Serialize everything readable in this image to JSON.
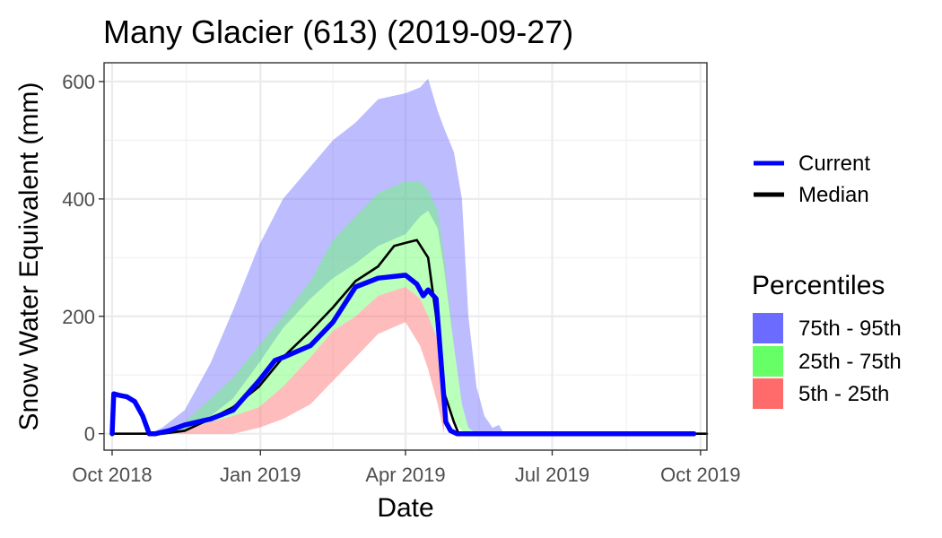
{
  "chart_data": {
    "type": "area",
    "title": "Many Glacier (613) (2019-09-27)",
    "xlabel": "Date",
    "ylabel": "Snow Water Equivalent (mm)",
    "x_range": [
      "2018-09-26",
      "2019-10-05"
    ],
    "ylim": [
      -28,
      632
    ],
    "x_ticks": [
      {
        "date": "2018-10-01",
        "label": "Oct 2018"
      },
      {
        "date": "2019-01-01",
        "label": "Jan 2019"
      },
      {
        "date": "2019-04-01",
        "label": "Apr 2019"
      },
      {
        "date": "2019-07-01",
        "label": "Jul 2019"
      },
      {
        "date": "2019-10-01",
        "label": "Oct 2019"
      }
    ],
    "y_ticks": [
      0,
      200,
      400,
      600
    ],
    "grid": true,
    "legend_position": "right",
    "bands": [
      {
        "name": "75th - 95th",
        "color": "#6b6bff",
        "x": [
          "2018-10-01",
          "2018-10-24",
          "2018-11-01",
          "2018-11-15",
          "2018-12-01",
          "2018-12-15",
          "2018-12-31",
          "2019-01-15",
          "2019-02-01",
          "2019-02-15",
          "2019-03-01",
          "2019-03-15",
          "2019-04-01",
          "2019-04-10",
          "2019-04-15",
          "2019-04-21",
          "2019-04-25",
          "2019-05-01",
          "2019-05-06",
          "2019-05-10",
          "2019-05-15",
          "2019-05-20",
          "2019-05-25",
          "2019-05-29",
          "2019-06-01"
        ],
        "upper": [
          0,
          0,
          10,
          40,
          120,
          210,
          320,
          400,
          455,
          500,
          530,
          570,
          580,
          590,
          605,
          550,
          520,
          480,
          400,
          200,
          80,
          30,
          10,
          15,
          0
        ],
        "lower": [
          0,
          0,
          0,
          5,
          30,
          60,
          120,
          180,
          230,
          265,
          290,
          320,
          340,
          370,
          380,
          350,
          280,
          150,
          50,
          10,
          0,
          0,
          0,
          0,
          0
        ]
      },
      {
        "name": "25th - 75th",
        "color": "#66ff66",
        "x": [
          "2018-10-01",
          "2018-10-24",
          "2018-11-01",
          "2018-11-15",
          "2018-12-01",
          "2018-12-15",
          "2018-12-31",
          "2019-01-15",
          "2019-02-01",
          "2019-02-15",
          "2019-03-01",
          "2019-03-15",
          "2019-04-01",
          "2019-04-10",
          "2019-04-15",
          "2019-04-21",
          "2019-04-25",
          "2019-05-01",
          "2019-05-06",
          "2019-05-10",
          "2019-05-15"
        ],
        "upper": [
          0,
          0,
          5,
          20,
          60,
          95,
          150,
          200,
          260,
          330,
          370,
          410,
          430,
          430,
          415,
          380,
          300,
          150,
          50,
          10,
          0
        ],
        "lower": [
          0,
          0,
          0,
          5,
          20,
          30,
          45,
          80,
          130,
          175,
          200,
          235,
          250,
          230,
          200,
          160,
          80,
          20,
          5,
          0,
          0
        ]
      },
      {
        "name": "5th - 25th",
        "color": "#ff6b6b",
        "x": [
          "2018-10-01",
          "2018-11-15",
          "2018-12-01",
          "2018-12-15",
          "2018-12-31",
          "2019-01-15",
          "2019-02-01",
          "2019-02-15",
          "2019-03-01",
          "2019-03-15",
          "2019-04-01",
          "2019-04-10",
          "2019-04-15",
          "2019-04-21",
          "2019-04-25"
        ],
        "upper": [
          0,
          5,
          20,
          30,
          45,
          80,
          130,
          175,
          200,
          235,
          250,
          230,
          200,
          160,
          80
        ],
        "lower": [
          0,
          0,
          0,
          0,
          10,
          25,
          50,
          90,
          130,
          170,
          190,
          150,
          110,
          50,
          0
        ]
      }
    ],
    "series": [
      {
        "name": "Median",
        "color": "#000000",
        "x": [
          "2018-10-01",
          "2018-11-01",
          "2018-11-15",
          "2018-12-01",
          "2018-12-15",
          "2018-12-31",
          "2019-01-15",
          "2019-02-01",
          "2019-02-15",
          "2019-03-01",
          "2019-03-15",
          "2019-03-25",
          "2019-04-01",
          "2019-04-08",
          "2019-04-15",
          "2019-04-20",
          "2019-04-25",
          "2019-05-01",
          "2019-05-04",
          "2019-05-10",
          "2019-05-15",
          "2019-06-01",
          "2019-10-05"
        ],
        "values": [
          0,
          0,
          5,
          25,
          45,
          80,
          130,
          175,
          215,
          260,
          285,
          320,
          325,
          330,
          300,
          200,
          70,
          20,
          0,
          0,
          0,
          0,
          0
        ]
      },
      {
        "name": "Current",
        "color": "#0000ff",
        "x": [
          "2018-10-01",
          "2018-10-02",
          "2018-10-06",
          "2018-10-10",
          "2018-10-15",
          "2018-10-20",
          "2018-10-24",
          "2018-10-28",
          "2018-11-05",
          "2018-11-15",
          "2018-12-01",
          "2018-12-15",
          "2018-12-31",
          "2019-01-10",
          "2019-01-15",
          "2019-02-01",
          "2019-02-15",
          "2019-03-01",
          "2019-03-15",
          "2019-04-01",
          "2019-04-08",
          "2019-04-12",
          "2019-04-15",
          "2019-04-20",
          "2019-04-26",
          "2019-04-29",
          "2019-05-03",
          "2019-05-08",
          "2019-06-01",
          "2019-07-01",
          "2019-09-27"
        ],
        "values": [
          0,
          68,
          65,
          63,
          55,
          30,
          0,
          0,
          5,
          15,
          25,
          40,
          90,
          125,
          130,
          150,
          190,
          250,
          265,
          270,
          255,
          235,
          245,
          230,
          20,
          5,
          0,
          0,
          0,
          0,
          0
        ]
      }
    ]
  },
  "legend": {
    "lines": [
      {
        "label": "Current",
        "color": "#0000ff"
      },
      {
        "label": "Median",
        "color": "#000000"
      }
    ],
    "title": "Percentiles",
    "fills": [
      {
        "label": "75th - 95th",
        "color": "#6b6bff"
      },
      {
        "label": "25th - 75th",
        "color": "#66ff66"
      },
      {
        "label": "5th - 25th",
        "color": "#ff6b6b"
      }
    ]
  }
}
